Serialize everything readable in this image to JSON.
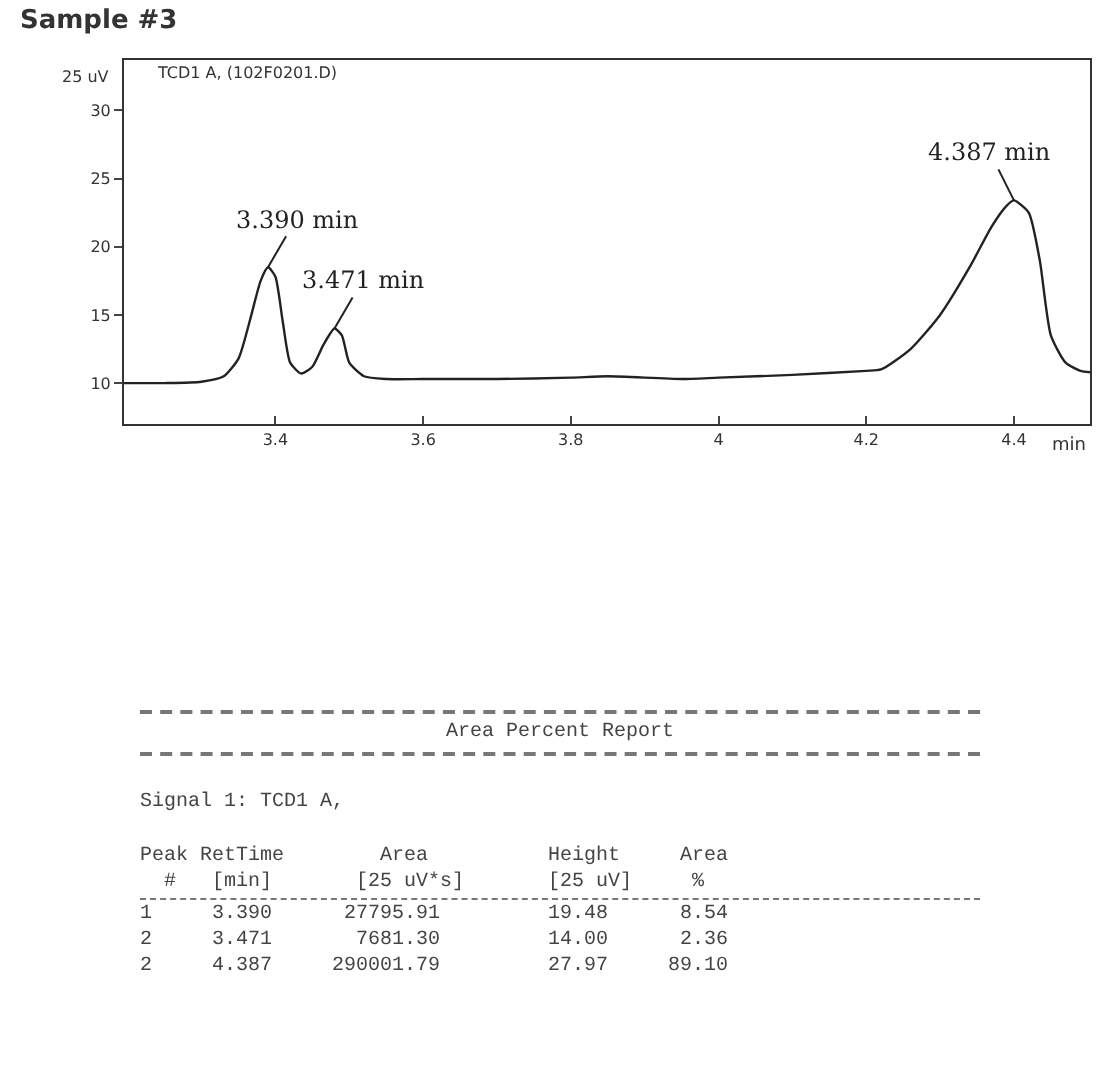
{
  "chart_data": {
    "type": "line",
    "title": "Sample #3",
    "subtitle": "TCD1 A, (102F0201.D)",
    "xlabel": "min",
    "ylabel": "25 uV",
    "x": [
      3.195,
      3.25,
      3.3,
      3.33,
      3.35,
      3.365,
      3.38,
      3.39,
      3.4,
      3.41,
      3.42,
      3.435,
      3.45,
      3.465,
      3.48,
      3.49,
      3.5,
      3.52,
      3.55,
      3.6,
      3.7,
      3.8,
      3.85,
      3.95,
      4.0,
      4.1,
      4.2,
      4.22,
      4.26,
      4.3,
      4.34,
      4.37,
      4.39,
      4.4,
      4.42,
      4.435,
      4.45,
      4.47,
      4.49,
      4.503
    ],
    "series": [
      {
        "color": "#222222",
        "values": [
          10.0,
          10.0,
          10.1,
          10.5,
          11.8,
          14.5,
          17.5,
          18.5,
          17.8,
          14.5,
          11.5,
          10.7,
          11.2,
          12.8,
          14.0,
          13.5,
          11.5,
          10.5,
          10.3,
          10.3,
          10.3,
          10.4,
          10.5,
          10.3,
          10.4,
          10.6,
          10.9,
          11.0,
          12.5,
          15.0,
          18.5,
          21.5,
          23.0,
          23.4,
          22.5,
          19.0,
          13.5,
          11.5,
          10.9,
          10.8
        ]
      }
    ],
    "xlim": [
      3.195,
      4.503
    ],
    "xticks": [
      3.4,
      3.6,
      3.8,
      4,
      4.2,
      4.4
    ],
    "ylim": [
      7,
      33.7
    ],
    "yticks": [
      10,
      15,
      20,
      25,
      30
    ],
    "grid": false,
    "marker": "none",
    "line_style": "solid",
    "annotations": [
      {
        "text": "3.390 min",
        "x": 3.39,
        "y": 18.5
      },
      {
        "text": "3.471 min",
        "x": 3.48,
        "y": 14.0
      },
      {
        "text": "4.387 min",
        "x": 4.4,
        "y": 23.4
      },
      "Area Percent Report",
      "Signal 1: TCD1 A,",
      "Peak RetTime        Area          Height     Area",
      "  #   [min]       [25 uV*s]       [25 uV]     %",
      "1     3.390      27795.91         19.48      8.54",
      "2     3.471       7681.30         14.00      2.36",
      "2     4.387     290001.79         27.97     89.10"
    ]
  }
}
